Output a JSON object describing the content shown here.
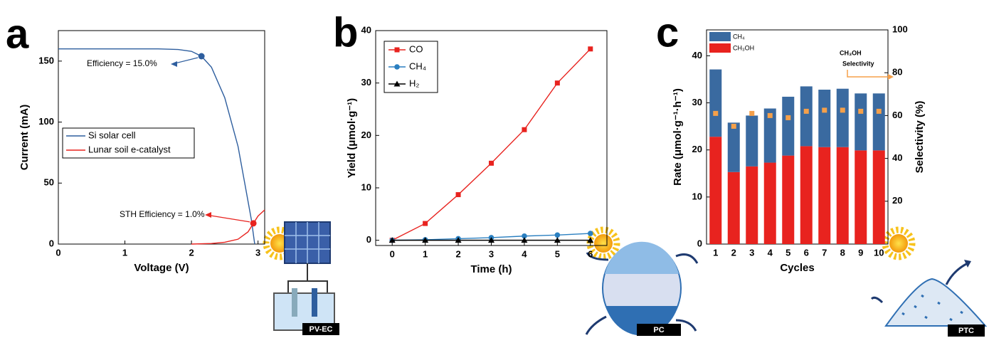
{
  "icons": [
    "PV-EC",
    "PC",
    "PTC"
  ],
  "chart_data": [
    {
      "panel": "a",
      "type": "line",
      "xlabel": "Voltage (V)",
      "ylabel": "Current (mA)",
      "xlim": [
        0,
        3.1
      ],
      "xticks": [
        0,
        1,
        2,
        3
      ],
      "ylim": [
        0,
        175
      ],
      "yticks": [
        0,
        50,
        100,
        150
      ],
      "legend": "center-left",
      "series": [
        {
          "name": "Si solar cell",
          "color": "#2e5e9e",
          "x": [
            0,
            0.5,
            1,
            1.5,
            1.8,
            2.0,
            2.15,
            2.3,
            2.5,
            2.7,
            2.8,
            2.9,
            2.95
          ],
          "values": [
            160,
            160,
            160,
            160,
            159.5,
            158,
            154,
            145,
            120,
            80,
            50,
            20,
            0
          ]
        },
        {
          "name": "Lunar soil e-catalyst",
          "color": "#e8231f",
          "x": [
            2.0,
            2.3,
            2.5,
            2.7,
            2.85,
            2.93,
            3.0,
            3.1
          ],
          "values": [
            0,
            0.5,
            1.5,
            4,
            10,
            17,
            23,
            28
          ]
        }
      ],
      "annotations": [
        {
          "text": "Efficiency = 15.0%",
          "x": 2.15,
          "y": 154,
          "color": "#2e5e9e"
        },
        {
          "text": "STH Efficiency = 1.0%",
          "x": 2.93,
          "y": 17,
          "color": "#e8231f"
        }
      ]
    },
    {
      "panel": "b",
      "type": "line",
      "xlabel": "Time (h)",
      "ylabel": "Yield (μmol·g⁻¹)",
      "xlim": [
        -0.5,
        6.5
      ],
      "xticks": [
        0,
        1,
        2,
        3,
        4,
        5,
        6
      ],
      "ylim": [
        -1,
        40
      ],
      "yticks": [
        0,
        10,
        20,
        30,
        40
      ],
      "legend": "upper-left",
      "series": [
        {
          "name": "CO",
          "color": "#e8231f",
          "marker": "square",
          "x": [
            0,
            1,
            2,
            3,
            4,
            5,
            6
          ],
          "values": [
            0,
            3.2,
            8.7,
            14.7,
            21.1,
            30,
            36.5
          ]
        },
        {
          "name": "CH₄",
          "color": "#2a7fc0",
          "marker": "circle",
          "x": [
            0,
            1,
            2,
            3,
            4,
            5,
            6
          ],
          "values": [
            0,
            0.1,
            0.3,
            0.5,
            0.8,
            1.0,
            1.3
          ]
        },
        {
          "name": "H₂",
          "color": "#000000",
          "marker": "triangle",
          "x": [
            0,
            1,
            2,
            3,
            4,
            5,
            6
          ],
          "values": [
            0,
            0,
            0,
            0,
            0,
            0,
            0
          ]
        }
      ]
    },
    {
      "panel": "c",
      "type": "bar",
      "stacked": true,
      "xlabel": "Cycles",
      "ylabel": "Rate (μmol·g⁻¹·h⁻¹)",
      "y2label": "Selectivity (%)",
      "categories": [
        "1",
        "2",
        "3",
        "4",
        "5",
        "6",
        "7",
        "8",
        "9",
        "10"
      ],
      "ylim": [
        0,
        45.5
      ],
      "yticks": [
        0,
        10,
        20,
        30,
        40
      ],
      "y2lim": [
        0,
        100
      ],
      "y2ticks": [
        20,
        40,
        60,
        80,
        100
      ],
      "legend": "upper-left",
      "series": [
        {
          "name": "CH₃OH",
          "color": "#e8231f",
          "values": [
            22.8,
            15.3,
            16.5,
            17.3,
            18.8,
            20.8,
            20.6,
            20.6,
            19.9,
            19.9
          ]
        },
        {
          "name": "CH₄",
          "color": "#3a6aa0",
          "values": [
            14.3,
            10.5,
            10.8,
            11.5,
            12.5,
            12.7,
            12.2,
            12.4,
            12.1,
            12.1
          ]
        }
      ],
      "selectivity": {
        "color": "#f5a04a",
        "axis": "y2",
        "marker": "square",
        "values": [
          61,
          55,
          61,
          60,
          59,
          62,
          62.5,
          62.5,
          62,
          62
        ]
      },
      "annotation": [
        "CH₃OH",
        "Selectivity"
      ]
    }
  ]
}
